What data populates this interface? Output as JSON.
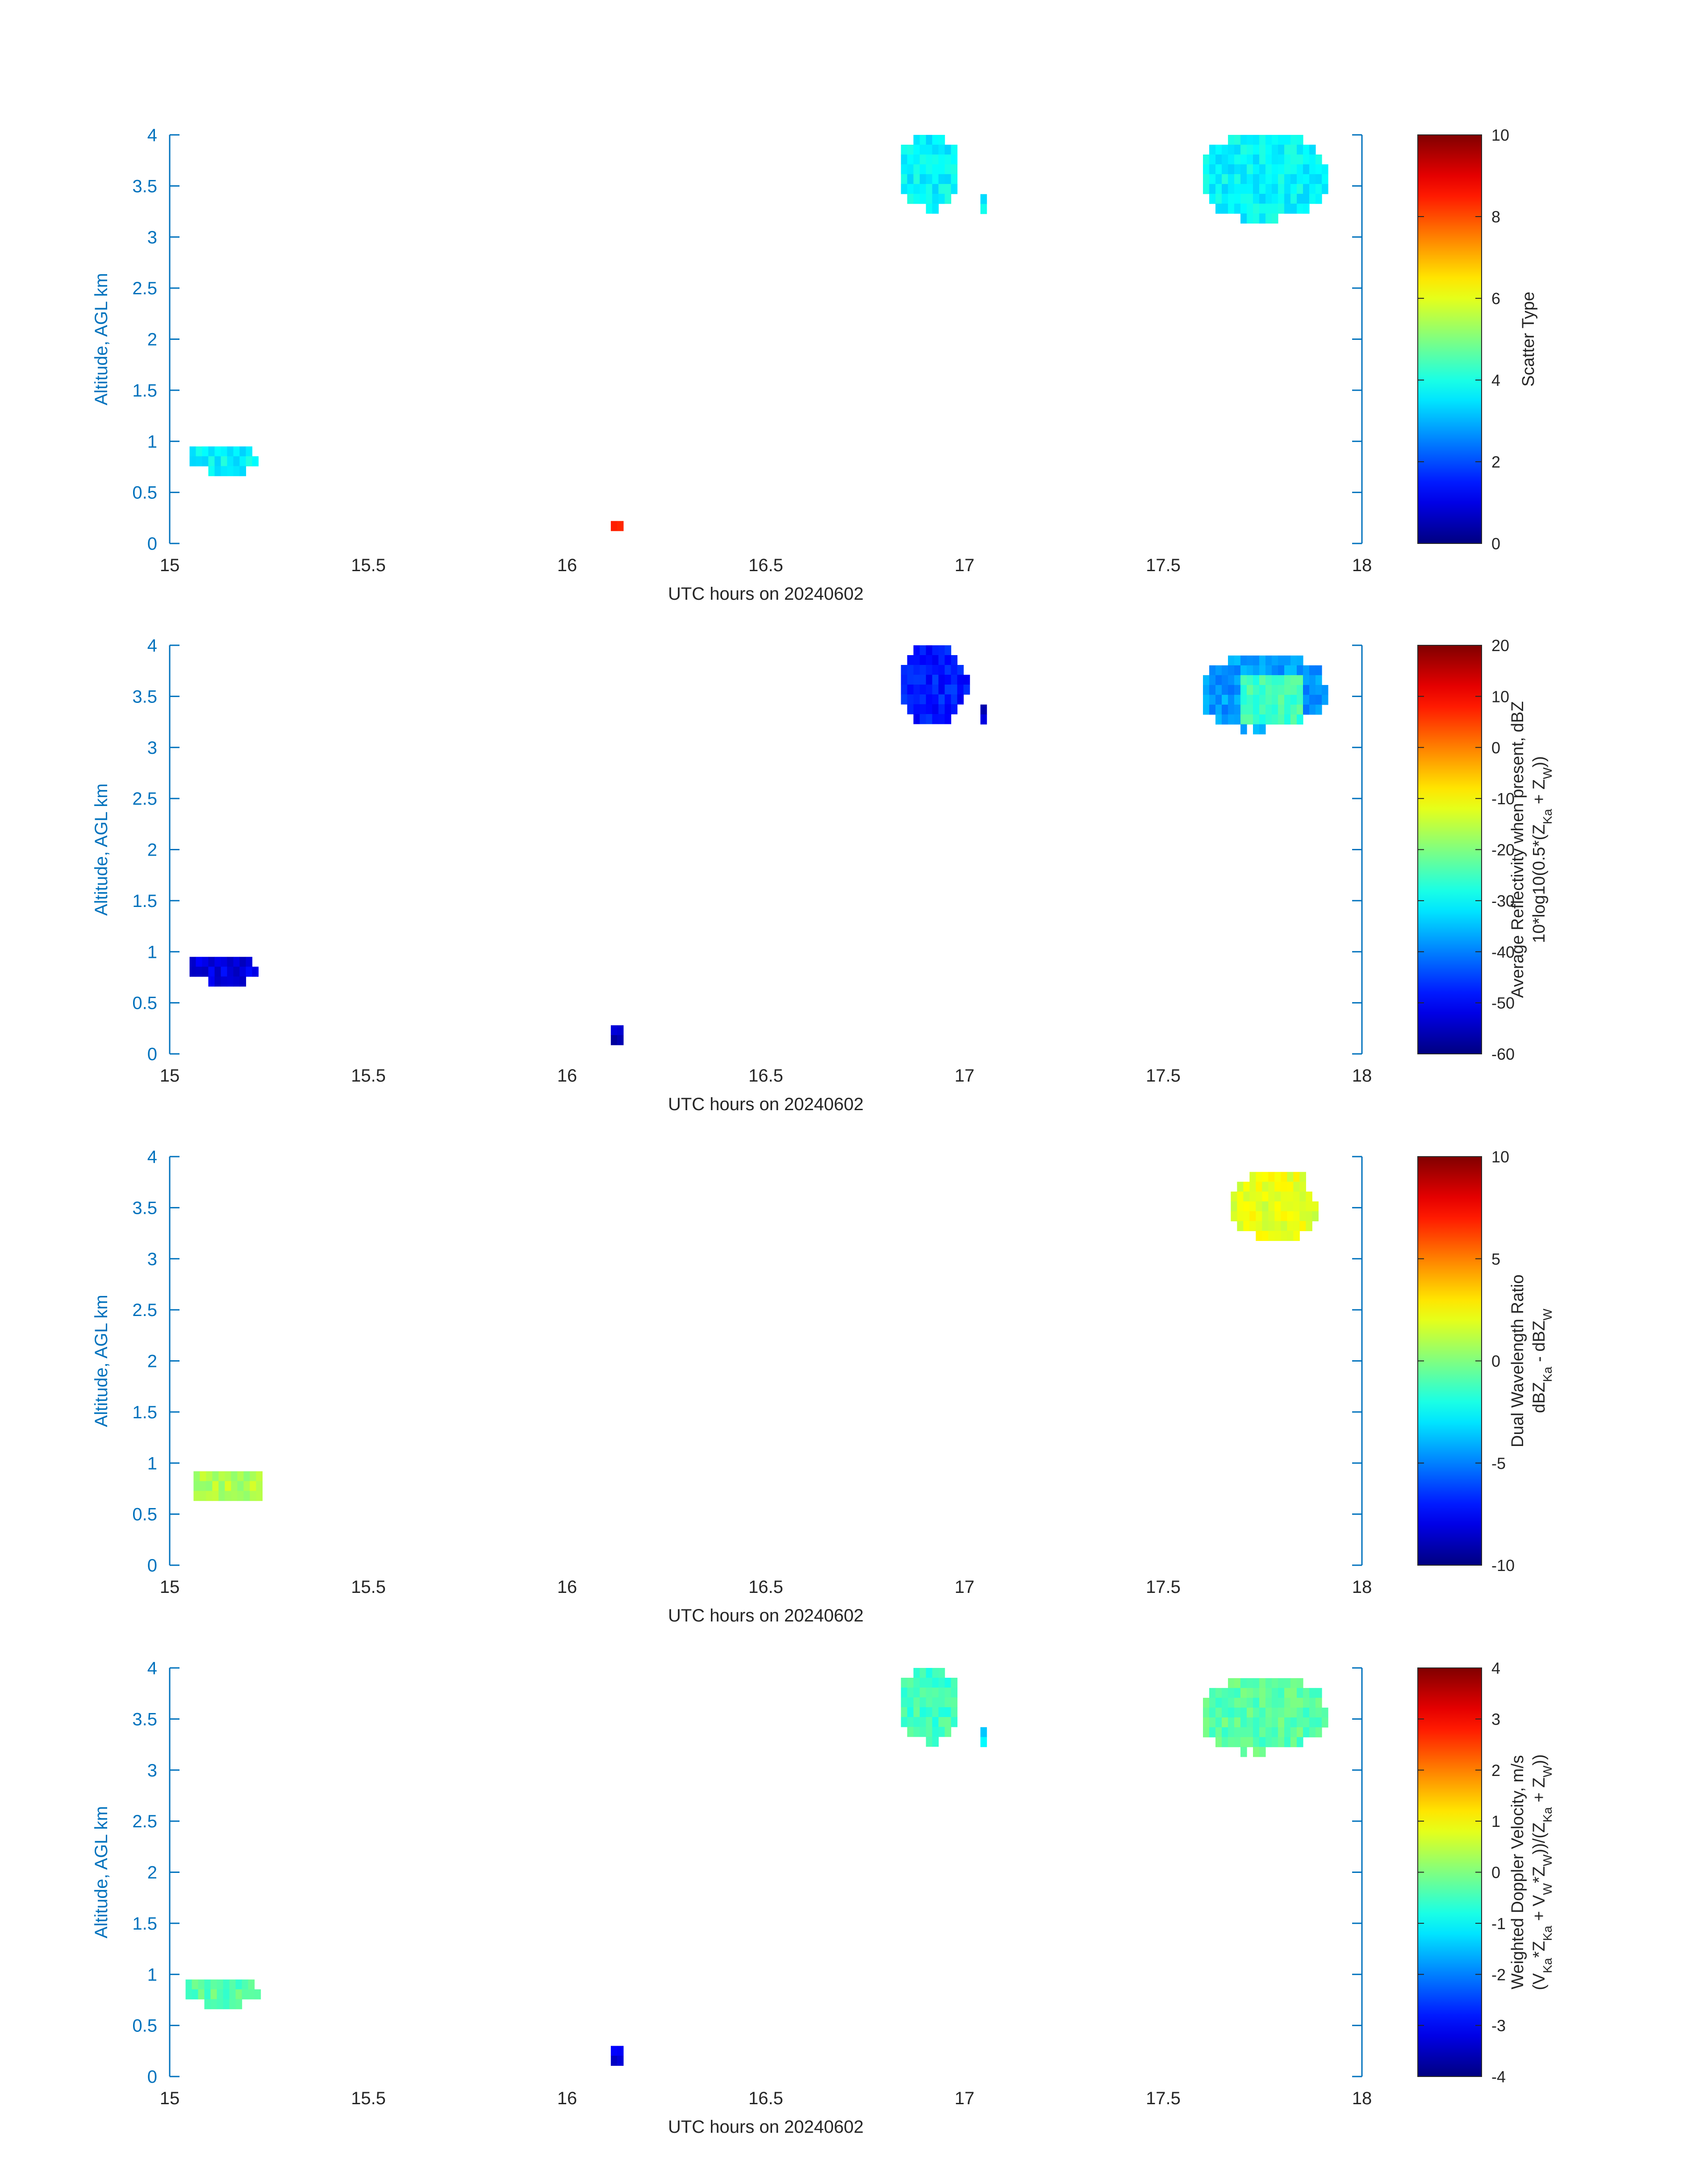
{
  "figure": {
    "axis_x_label": "UTC hours on 20240602",
    "axis_y_label": "Altitude, AGL km"
  },
  "chart_data": [
    {
      "type": "heatmap",
      "xlim": [
        15,
        18
      ],
      "ylim": [
        0,
        4
      ],
      "x_ticks": [
        "15",
        "15.5",
        "16",
        "16.5",
        "17",
        "17.5",
        "18"
      ],
      "y_ticks": [
        "0",
        "0.5",
        "1",
        "1.5",
        "2",
        "2.5",
        "3",
        "3.5",
        "4"
      ],
      "xlabel": "UTC hours on 20240602",
      "ylabel": "Altitude, AGL km",
      "colorbar": {
        "label_lines": [
          "Scatter Type"
        ],
        "min": 0,
        "max": 10,
        "ticks": [
          "0",
          "2",
          "4",
          "6",
          "8",
          "10"
        ]
      },
      "blobs": [
        {
          "x": [
            15.05,
            15.22
          ],
          "y": [
            0.7,
            0.95
          ],
          "value": 3.7
        },
        {
          "x": [
            16.11,
            16.13
          ],
          "y": [
            0.18,
            0.22
          ],
          "value": 8.2
        },
        {
          "x": [
            16.84,
            16.98
          ],
          "y": [
            3.3,
            4.0
          ],
          "value": 3.7
        },
        {
          "x": [
            17.04,
            17.05
          ],
          "y": [
            3.32,
            3.42
          ],
          "value": 3.7
        },
        {
          "x": [
            17.6,
            17.9
          ],
          "y": [
            3.2,
            4.0
          ],
          "value": 3.7
        }
      ]
    },
    {
      "type": "heatmap",
      "xlim": [
        15,
        18
      ],
      "ylim": [
        0,
        4
      ],
      "x_ticks": [
        "15",
        "15.5",
        "16",
        "16.5",
        "17",
        "17.5",
        "18"
      ],
      "y_ticks": [
        "0",
        "0.5",
        "1",
        "1.5",
        "2",
        "2.5",
        "3",
        "3.5",
        "4"
      ],
      "xlabel": "UTC hours on 20240602",
      "ylabel": "Altitude, AGL km",
      "colorbar": {
        "label_lines": [
          "Average Reflectivity when present, dBZ",
          "10*log10(0.5*(Z",
          "Ka",
          " + Z",
          "W",
          "))"
        ],
        "min": -60,
        "max": 20,
        "ticks": [
          "-60",
          "-50",
          "-40",
          "-30",
          "-20",
          "-10",
          "0",
          "10",
          "20"
        ]
      },
      "blobs": [
        {
          "x": [
            15.05,
            15.22
          ],
          "y": [
            0.7,
            0.95
          ],
          "value": -52
        },
        {
          "x": [
            16.11,
            16.13
          ],
          "y": [
            0.18,
            0.28
          ],
          "value": -55
        },
        {
          "x": [
            16.84,
            17.0
          ],
          "y": [
            3.25,
            4.0
          ],
          "value": -48
        },
        {
          "x": [
            17.04,
            17.05
          ],
          "y": [
            3.25,
            3.42
          ],
          "value": -54
        },
        {
          "x": [
            17.6,
            17.9
          ],
          "y": [
            3.2,
            3.9
          ],
          "value": -38,
          "core": {
            "x": [
              17.68,
              17.85
            ],
            "y": [
              3.25,
              3.75
            ],
            "value": -25
          }
        }
      ]
    },
    {
      "type": "heatmap",
      "xlim": [
        15,
        18
      ],
      "ylim": [
        0,
        4
      ],
      "x_ticks": [
        "15",
        "15.5",
        "16",
        "16.5",
        "17",
        "17.5",
        "18"
      ],
      "y_ticks": [
        "0",
        "0.5",
        "1",
        "1.5",
        "2",
        "2.5",
        "3",
        "3.5",
        "4"
      ],
      "xlabel": "UTC hours on 20240602",
      "ylabel": "Altitude, AGL km",
      "colorbar": {
        "label_lines": [
          "Dual Wavelength Ratio",
          "dBZ",
          "Ka",
          " - dBZ",
          "W"
        ],
        "min": -10,
        "max": 10,
        "ticks": [
          "-10",
          "-5",
          "0",
          "5",
          "10"
        ]
      },
      "blobs": [
        {
          "x": [
            15.06,
            15.22
          ],
          "y": [
            0.72,
            0.92
          ],
          "value": 1
        },
        {
          "x": [
            17.67,
            17.88
          ],
          "y": [
            3.2,
            3.85
          ],
          "value": 2
        }
      ]
    },
    {
      "type": "heatmap",
      "xlim": [
        15,
        18
      ],
      "ylim": [
        0,
        4
      ],
      "x_ticks": [
        "15",
        "15.5",
        "16",
        "16.5",
        "17",
        "17.5",
        "18"
      ],
      "y_ticks": [
        "0",
        "0.5",
        "1",
        "1.5",
        "2",
        "2.5",
        "3",
        "3.5",
        "4"
      ],
      "xlabel": "UTC hours on 20240602",
      "ylabel": "Altitude, AGL km",
      "colorbar": {
        "label_lines": [
          "Weighted Doppler Velocity, m/s",
          "(V",
          "Ka",
          "*Z",
          "Ka",
          " + V",
          "W",
          "*Z",
          "W",
          "))/(Z",
          "Ka",
          " + Z",
          "W",
          "))"
        ],
        "min": -4,
        "max": 4,
        "ticks": [
          "-4",
          "-3",
          "-2",
          "-1",
          "0",
          "1",
          "2",
          "3",
          "4"
        ]
      },
      "blobs": [
        {
          "x": [
            15.04,
            15.22
          ],
          "y": [
            0.7,
            0.95
          ],
          "value": -0.3
        },
        {
          "x": [
            16.11,
            16.13
          ],
          "y": [
            0.18,
            0.3
          ],
          "value": -3.2
        },
        {
          "x": [
            16.84,
            16.98
          ],
          "y": [
            3.3,
            4.0
          ],
          "value": -0.5
        },
        {
          "x": [
            17.04,
            17.05
          ],
          "y": [
            3.28,
            3.42
          ],
          "value": -1.2
        },
        {
          "x": [
            17.6,
            17.9
          ],
          "y": [
            3.2,
            3.9
          ],
          "value": -0.3
        }
      ]
    }
  ]
}
